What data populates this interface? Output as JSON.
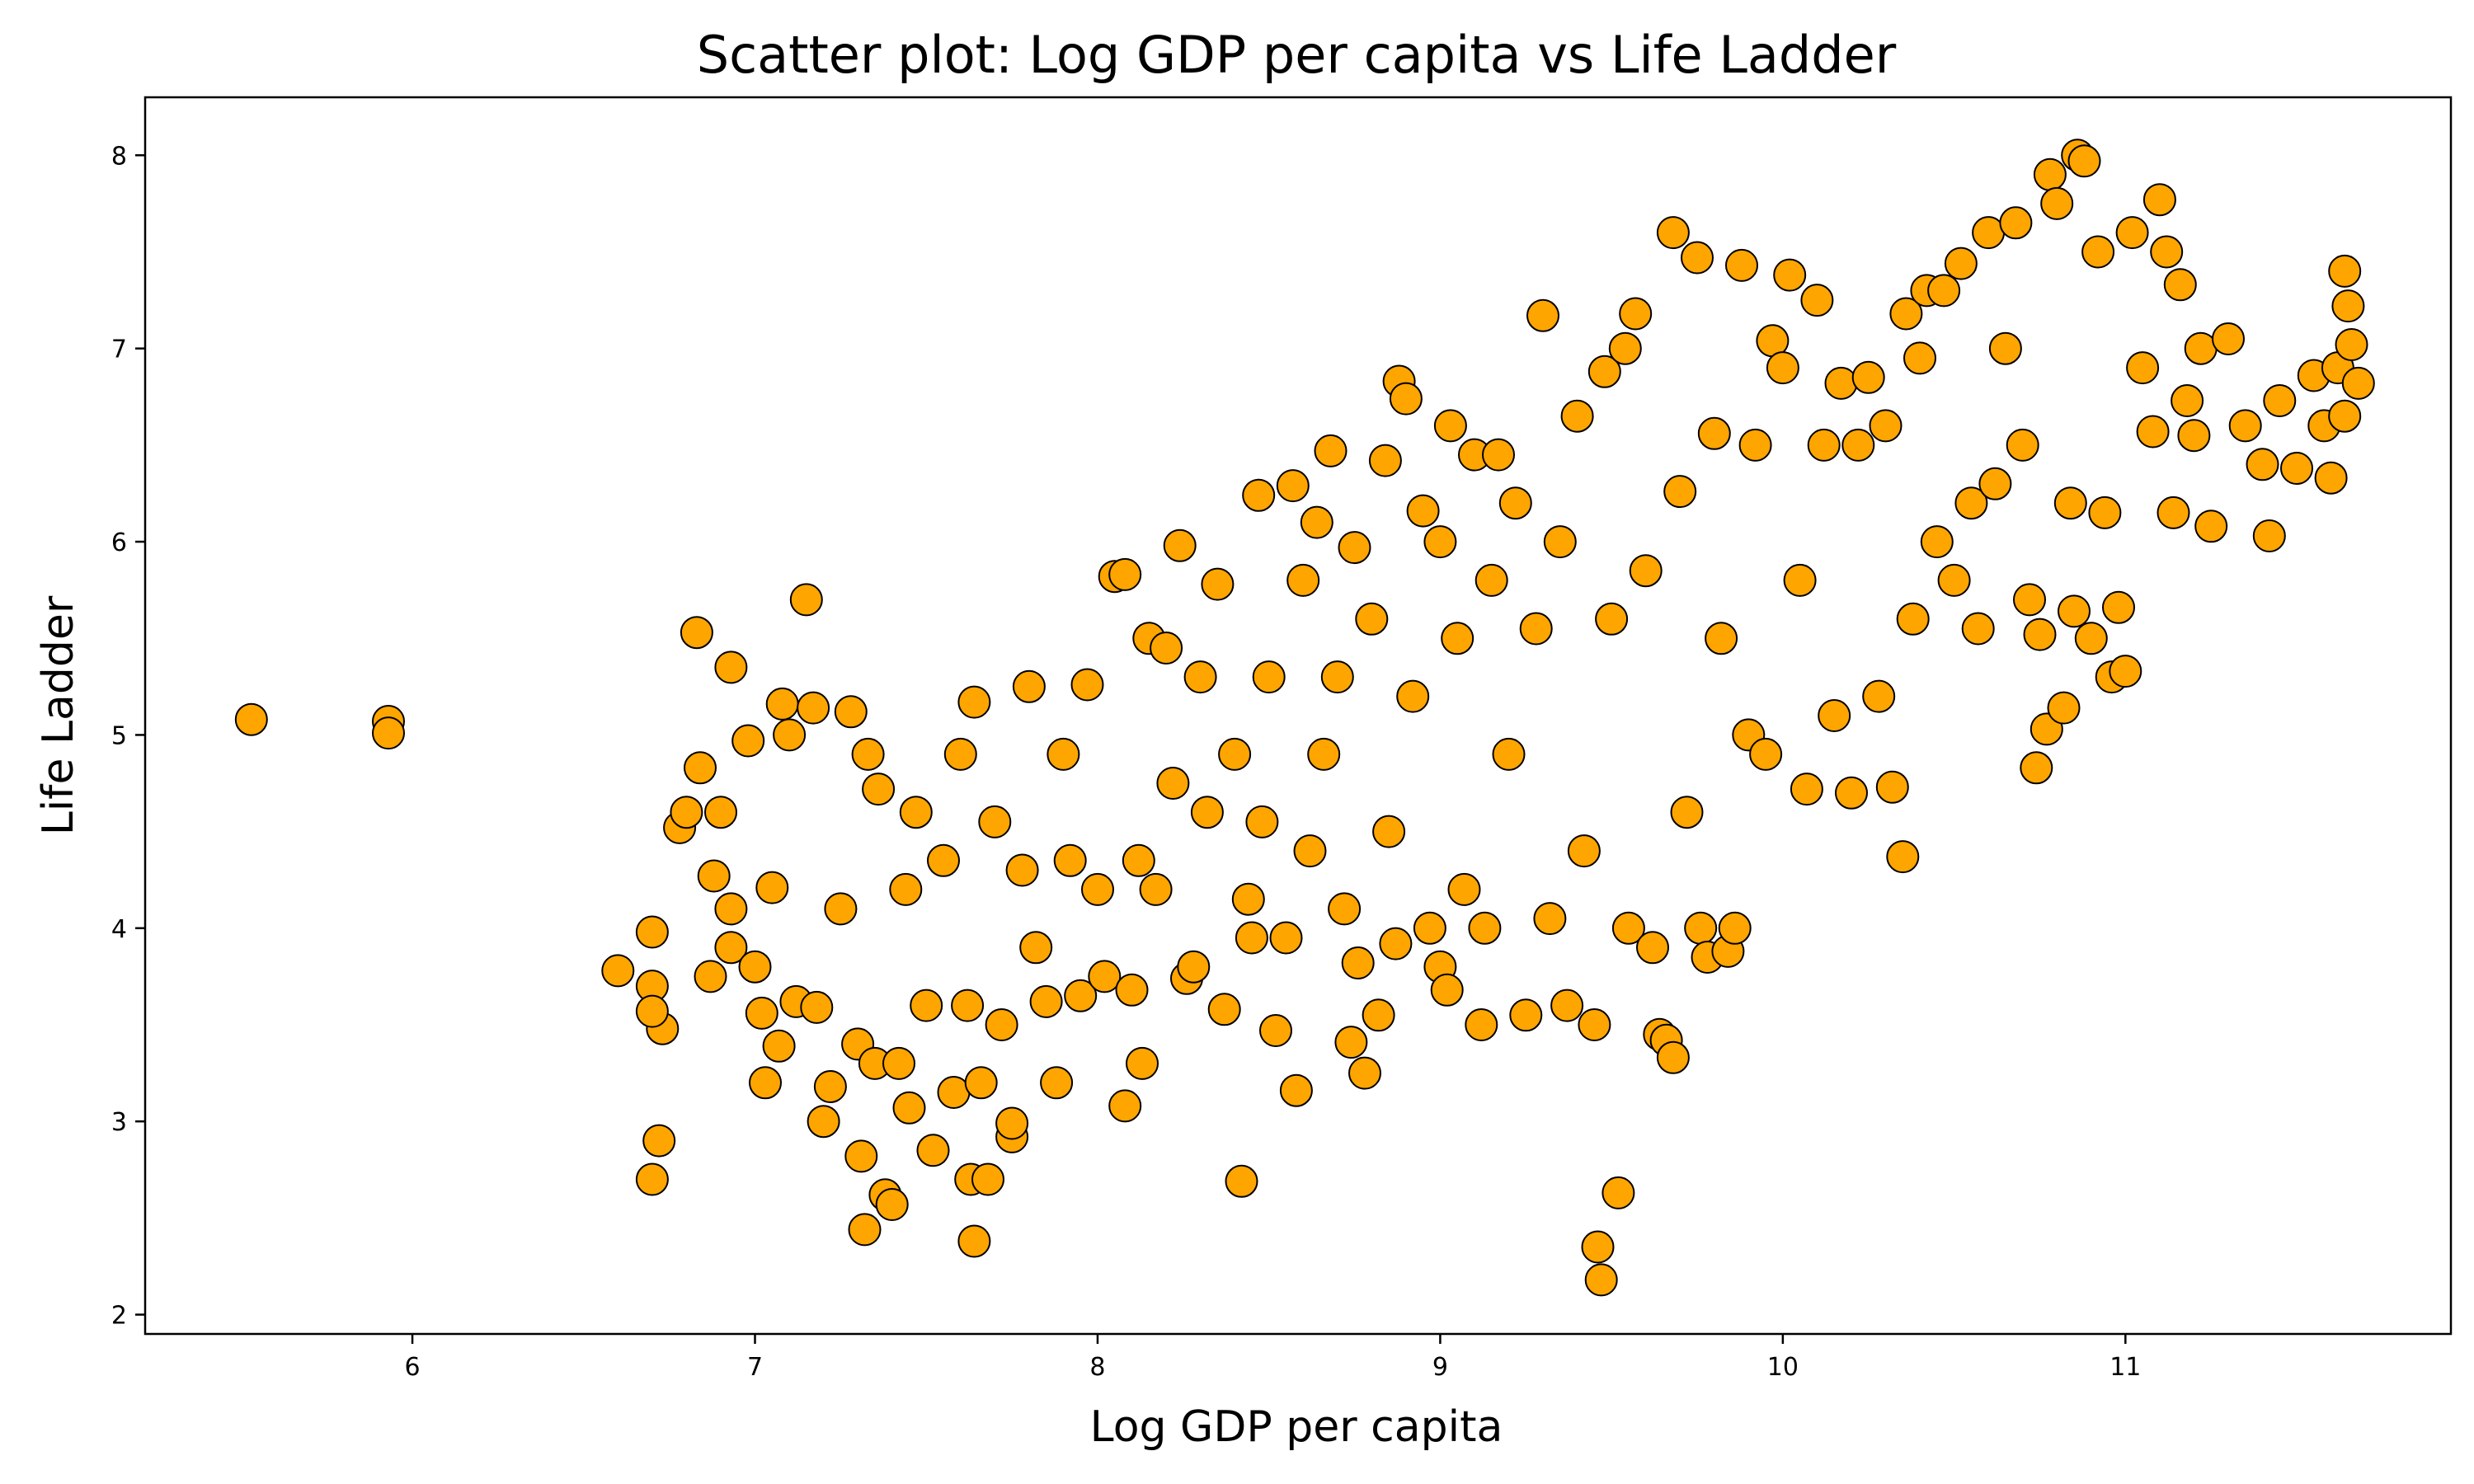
{
  "chart_data": {
    "type": "scatter",
    "title": "Scatter plot: Log GDP per capita vs Life Ladder",
    "xlabel": "Log GDP per capita",
    "ylabel": "Life Ladder",
    "xlim": [
      5.22,
      11.95
    ],
    "ylim": [
      1.9,
      8.3
    ],
    "xticks": [
      6,
      7,
      8,
      9,
      10,
      11
    ],
    "yticks": [
      2,
      3,
      4,
      5,
      6,
      7,
      8
    ],
    "grid": false,
    "legend": "none",
    "marker_color": "#FFA500",
    "marker_edge_color": "#000000",
    "sample_points": [
      [
        5.53,
        5.08
      ],
      [
        5.93,
        5.07
      ],
      [
        5.93,
        5.01
      ],
      [
        6.6,
        3.78
      ],
      [
        6.7,
        3.98
      ],
      [
        6.7,
        3.7
      ],
      [
        6.7,
        2.7
      ],
      [
        6.72,
        2.9
      ],
      [
        6.73,
        3.48
      ],
      [
        6.7,
        3.57
      ],
      [
        6.78,
        4.52
      ],
      [
        6.8,
        4.6
      ],
      [
        6.83,
        5.53
      ],
      [
        6.84,
        4.83
      ],
      [
        6.87,
        3.75
      ],
      [
        6.88,
        4.27
      ],
      [
        6.9,
        4.6
      ],
      [
        6.93,
        5.35
      ],
      [
        6.93,
        4.1
      ],
      [
        6.93,
        3.9
      ],
      [
        6.98,
        4.97
      ],
      [
        7.0,
        3.8
      ],
      [
        7.02,
        3.56
      ],
      [
        7.03,
        3.2
      ],
      [
        7.05,
        4.21
      ],
      [
        7.07,
        3.39
      ],
      [
        7.08,
        5.16
      ],
      [
        7.1,
        5.0
      ],
      [
        7.12,
        3.62
      ],
      [
        7.15,
        5.7
      ],
      [
        7.17,
        5.14
      ],
      [
        7.18,
        3.59
      ],
      [
        7.2,
        3.0
      ],
      [
        7.22,
        3.18
      ],
      [
        7.25,
        4.1
      ],
      [
        7.28,
        5.12
      ],
      [
        7.3,
        3.4
      ],
      [
        7.31,
        2.82
      ],
      [
        7.32,
        2.44
      ],
      [
        7.33,
        4.9
      ],
      [
        7.35,
        3.3
      ],
      [
        7.36,
        4.72
      ],
      [
        7.38,
        2.62
      ],
      [
        7.4,
        2.57
      ],
      [
        7.42,
        3.3
      ],
      [
        7.44,
        4.2
      ],
      [
        7.45,
        3.07
      ],
      [
        7.47,
        4.6
      ],
      [
        7.5,
        3.6
      ],
      [
        7.52,
        2.85
      ],
      [
        7.55,
        4.35
      ],
      [
        7.58,
        3.15
      ],
      [
        7.6,
        4.9
      ],
      [
        7.62,
        3.6
      ],
      [
        7.63,
        2.7
      ],
      [
        7.64,
        2.38
      ],
      [
        7.64,
        5.17
      ],
      [
        7.66,
        3.2
      ],
      [
        7.68,
        2.7
      ],
      [
        7.7,
        4.55
      ],
      [
        7.72,
        3.5
      ],
      [
        7.75,
        2.92
      ],
      [
        7.75,
        2.99
      ],
      [
        7.78,
        4.3
      ],
      [
        7.8,
        5.25
      ],
      [
        7.82,
        3.9
      ],
      [
        7.85,
        3.62
      ],
      [
        7.88,
        3.2
      ],
      [
        7.9,
        4.9
      ],
      [
        7.92,
        4.35
      ],
      [
        7.95,
        3.65
      ],
      [
        7.97,
        5.26
      ],
      [
        8.0,
        4.2
      ],
      [
        8.02,
        3.75
      ],
      [
        8.05,
        5.82
      ],
      [
        8.08,
        5.83
      ],
      [
        8.08,
        3.08
      ],
      [
        8.1,
        3.68
      ],
      [
        8.12,
        4.35
      ],
      [
        8.13,
        3.3
      ],
      [
        8.15,
        5.5
      ],
      [
        8.17,
        4.2
      ],
      [
        8.2,
        5.45
      ],
      [
        8.22,
        4.75
      ],
      [
        8.24,
        5.98
      ],
      [
        8.26,
        3.74
      ],
      [
        8.28,
        3.8
      ],
      [
        8.3,
        5.3
      ],
      [
        8.32,
        4.6
      ],
      [
        8.35,
        5.78
      ],
      [
        8.37,
        3.58
      ],
      [
        8.4,
        4.9
      ],
      [
        8.42,
        2.69
      ],
      [
        8.44,
        4.15
      ],
      [
        8.45,
        3.95
      ],
      [
        8.47,
        6.24
      ],
      [
        8.48,
        4.55
      ],
      [
        8.5,
        5.3
      ],
      [
        8.52,
        3.47
      ],
      [
        8.55,
        3.95
      ],
      [
        8.57,
        6.29
      ],
      [
        8.58,
        3.16
      ],
      [
        8.6,
        5.8
      ],
      [
        8.62,
        4.4
      ],
      [
        8.64,
        6.1
      ],
      [
        8.66,
        4.9
      ],
      [
        8.68,
        6.47
      ],
      [
        8.7,
        5.3
      ],
      [
        8.72,
        4.1
      ],
      [
        8.74,
        3.41
      ],
      [
        8.75,
        5.97
      ],
      [
        8.76,
        3.82
      ],
      [
        8.78,
        3.25
      ],
      [
        8.8,
        5.6
      ],
      [
        8.82,
        3.55
      ],
      [
        8.84,
        6.42
      ],
      [
        8.85,
        4.5
      ],
      [
        8.87,
        3.92
      ],
      [
        8.88,
        6.83
      ],
      [
        8.9,
        6.74
      ],
      [
        8.92,
        5.2
      ],
      [
        8.95,
        6.16
      ],
      [
        8.97,
        4.0
      ],
      [
        9.0,
        6.0
      ],
      [
        9.0,
        3.8
      ],
      [
        9.02,
        3.68
      ],
      [
        9.03,
        6.6
      ],
      [
        9.05,
        5.5
      ],
      [
        9.07,
        4.2
      ],
      [
        9.1,
        6.45
      ],
      [
        9.12,
        3.5
      ],
      [
        9.13,
        4.0
      ],
      [
        9.15,
        5.8
      ],
      [
        9.17,
        6.45
      ],
      [
        9.2,
        4.9
      ],
      [
        9.22,
        6.2
      ],
      [
        9.25,
        3.55
      ],
      [
        9.28,
        5.55
      ],
      [
        9.3,
        7.17
      ],
      [
        9.32,
        4.05
      ],
      [
        9.35,
        6.0
      ],
      [
        9.37,
        3.6
      ],
      [
        9.4,
        6.65
      ],
      [
        9.42,
        4.4
      ],
      [
        9.45,
        3.5
      ],
      [
        9.46,
        2.35
      ],
      [
        9.47,
        2.18
      ],
      [
        9.48,
        6.88
      ],
      [
        9.5,
        5.6
      ],
      [
        9.52,
        2.63
      ],
      [
        9.54,
        7.0
      ],
      [
        9.55,
        4.0
      ],
      [
        9.57,
        7.18
      ],
      [
        9.6,
        5.85
      ],
      [
        9.62,
        3.9
      ],
      [
        9.64,
        3.45
      ],
      [
        9.66,
        3.42
      ],
      [
        9.68,
        3.33
      ],
      [
        9.68,
        7.6
      ],
      [
        9.7,
        6.26
      ],
      [
        9.72,
        4.6
      ],
      [
        9.75,
        7.47
      ],
      [
        9.76,
        4.0
      ],
      [
        9.78,
        3.85
      ],
      [
        9.8,
        6.56
      ],
      [
        9.82,
        5.5
      ],
      [
        9.84,
        3.88
      ],
      [
        9.86,
        4.0
      ],
      [
        9.88,
        7.43
      ],
      [
        9.9,
        5.0
      ],
      [
        9.92,
        6.5
      ],
      [
        9.95,
        4.9
      ],
      [
        9.97,
        7.04
      ],
      [
        10.0,
        6.9
      ],
      [
        10.02,
        7.38
      ],
      [
        10.05,
        5.8
      ],
      [
        10.07,
        4.72
      ],
      [
        10.1,
        7.25
      ],
      [
        10.12,
        6.5
      ],
      [
        10.15,
        5.1
      ],
      [
        10.17,
        6.82
      ],
      [
        10.2,
        4.7
      ],
      [
        10.22,
        6.5
      ],
      [
        10.25,
        6.85
      ],
      [
        10.28,
        5.2
      ],
      [
        10.3,
        6.6
      ],
      [
        10.32,
        4.73
      ],
      [
        10.35,
        4.37
      ],
      [
        10.36,
        7.18
      ],
      [
        10.38,
        5.6
      ],
      [
        10.4,
        6.95
      ],
      [
        10.42,
        7.3
      ],
      [
        10.45,
        6.0
      ],
      [
        10.47,
        7.3
      ],
      [
        10.5,
        5.8
      ],
      [
        10.52,
        7.44
      ],
      [
        10.55,
        6.2
      ],
      [
        10.57,
        5.55
      ],
      [
        10.6,
        7.6
      ],
      [
        10.62,
        6.3
      ],
      [
        10.65,
        7.0
      ],
      [
        10.68,
        7.65
      ],
      [
        10.7,
        6.5
      ],
      [
        10.72,
        5.7
      ],
      [
        10.74,
        4.83
      ],
      [
        10.75,
        5.52
      ],
      [
        10.77,
        5.03
      ],
      [
        10.78,
        7.9
      ],
      [
        10.8,
        7.75
      ],
      [
        10.82,
        5.14
      ],
      [
        10.84,
        6.2
      ],
      [
        10.85,
        5.64
      ],
      [
        10.86,
        8.0
      ],
      [
        10.88,
        7.97
      ],
      [
        10.9,
        5.5
      ],
      [
        10.92,
        7.5
      ],
      [
        10.94,
        6.15
      ],
      [
        10.96,
        5.3
      ],
      [
        10.98,
        5.66
      ],
      [
        11.0,
        5.33
      ],
      [
        11.02,
        7.6
      ],
      [
        11.05,
        6.9
      ],
      [
        11.08,
        6.57
      ],
      [
        11.1,
        7.77
      ],
      [
        11.12,
        7.5
      ],
      [
        11.14,
        6.15
      ],
      [
        11.16,
        7.33
      ],
      [
        11.18,
        6.73
      ],
      [
        11.2,
        6.55
      ],
      [
        11.22,
        7.0
      ],
      [
        11.25,
        6.08
      ],
      [
        11.3,
        7.05
      ],
      [
        11.35,
        6.6
      ],
      [
        11.4,
        6.4
      ],
      [
        11.42,
        6.03
      ],
      [
        11.45,
        6.73
      ],
      [
        11.5,
        6.38
      ],
      [
        11.55,
        6.86
      ],
      [
        11.58,
        6.6
      ],
      [
        11.6,
        6.33
      ],
      [
        11.62,
        6.9
      ],
      [
        11.64,
        7.4
      ],
      [
        11.65,
        7.22
      ],
      [
        11.66,
        7.02
      ],
      [
        11.68,
        6.82
      ],
      [
        11.64,
        6.65
      ]
    ]
  }
}
